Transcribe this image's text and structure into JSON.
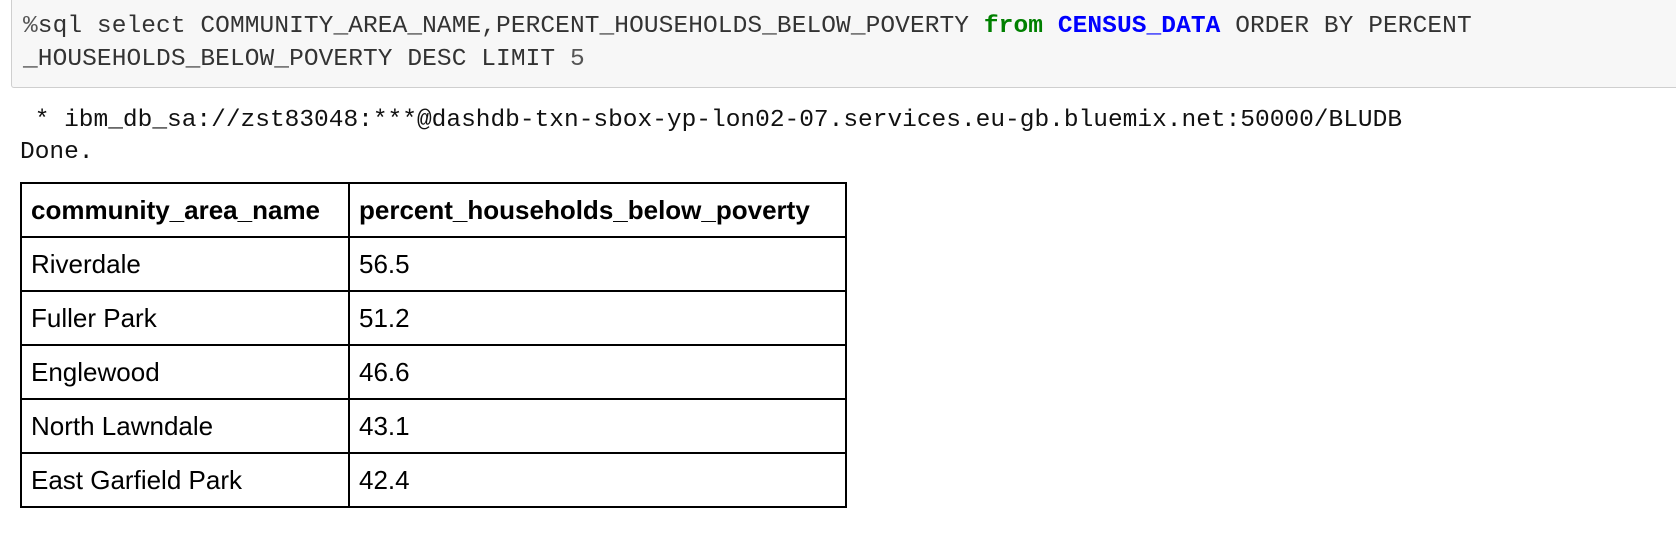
{
  "code_cell": {
    "magic": "%",
    "line1_prefix": "sql select COMMUNITY_AREA_NAME,PERCENT_HOUSEHOLDS_BELOW_POVERTY ",
    "keyword_from": "from",
    "table_name": "CENSUS_DATA",
    "line1_suffix": " ORDER BY PERCENT",
    "line2_text": "_HOUSEHOLDS_BELOW_POVERTY DESC LIMIT ",
    "limit_value": "5",
    "colors": {
      "keyword": "#008000",
      "table_name": "#0000ff",
      "background": "#f7f7f7"
    }
  },
  "output": {
    "connection_line": " * ibm_db_sa://zst83048:***@dashdb-txn-sbox-yp-lon02-07.services.eu-gb.bluemix.net:50000/BLUDB",
    "status": "Done."
  },
  "result_table": {
    "headers": [
      "community_area_name",
      "percent_households_below_poverty"
    ],
    "rows": [
      [
        "Riverdale",
        "56.5"
      ],
      [
        "Fuller Park",
        "51.2"
      ],
      [
        "Englewood",
        "46.6"
      ],
      [
        "North Lawndale",
        "43.1"
      ],
      [
        "East Garfield Park",
        "42.4"
      ]
    ]
  }
}
